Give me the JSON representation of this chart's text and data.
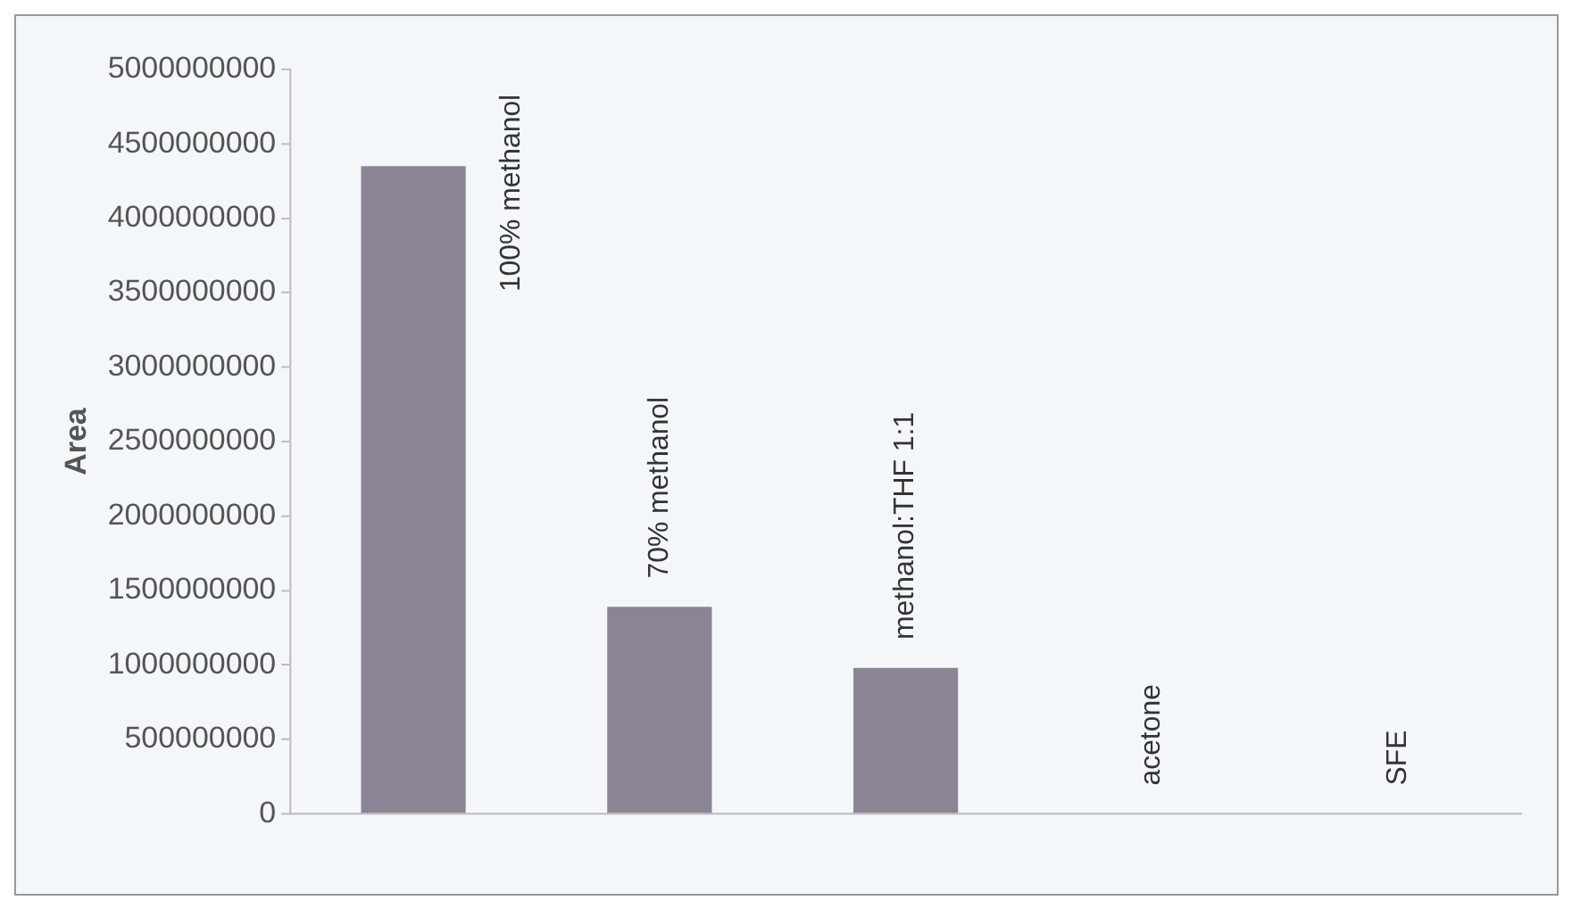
{
  "chart_data": {
    "type": "bar",
    "ylabel": "Area",
    "categories": [
      "100% methanol",
      "70% methanol",
      "methanol:THF 1:1",
      "acetone",
      "SFE"
    ],
    "values": [
      4350000000,
      1390000000,
      980000000,
      0,
      0
    ],
    "color": "#8a8494",
    "ylim": [
      0,
      5000000000
    ],
    "yticks": [
      0,
      500000000,
      1000000000,
      1500000000,
      2000000000,
      2500000000,
      3000000000,
      3500000000,
      4000000000,
      4500000000,
      5000000000
    ],
    "grid": false,
    "legend": false
  }
}
